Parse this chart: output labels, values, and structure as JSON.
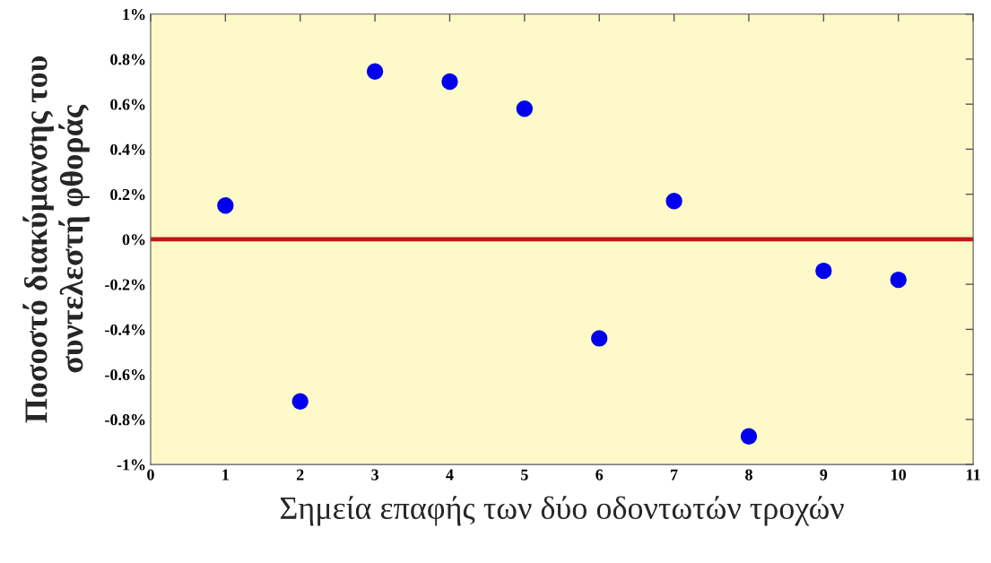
{
  "chart_data": {
    "type": "scatter",
    "xlabel": "Σημεία επαφής των δύο οδοντωτών τροχών",
    "ylabel": "Ποσοστό διακύμανσης του\nσυντελεστή φθοράς",
    "x": [
      1,
      2,
      3,
      4,
      5,
      6,
      7,
      8,
      9,
      10
    ],
    "series": [
      {
        "color": "#0000ee",
        "values": [
          0.15,
          -0.72,
          0.745,
          0.7,
          0.58,
          -0.44,
          0.17,
          -0.875,
          -0.14,
          -0.18
        ]
      }
    ],
    "marker": "circle",
    "xlim": [
      0,
      11
    ],
    "xticks": [
      0,
      1,
      2,
      3,
      4,
      5,
      6,
      7,
      8,
      9,
      10,
      11
    ],
    "ylim": [
      -1,
      1
    ],
    "yticks": [
      {
        "value": -1,
        "label": "-1%"
      },
      {
        "value": -0.8,
        "label": "-0.8%"
      },
      {
        "value": -0.6,
        "label": "-0.6%"
      },
      {
        "value": -0.4,
        "label": "-0.4%"
      },
      {
        "value": -0.2,
        "label": "-0.2%"
      },
      {
        "value": 0,
        "label": "0%"
      },
      {
        "value": 0.2,
        "label": "0.2%"
      },
      {
        "value": 0.4,
        "label": "0.4%"
      },
      {
        "value": 0.6,
        "label": "0.6%"
      },
      {
        "value": 0.8,
        "label": "0.8%"
      },
      {
        "value": 1,
        "label": "1%"
      }
    ],
    "ref_lines": [
      {
        "axis": "y",
        "value": 0,
        "color": "#c0171b",
        "line_style": "solid"
      }
    ],
    "grid": false,
    "legend": false
  }
}
